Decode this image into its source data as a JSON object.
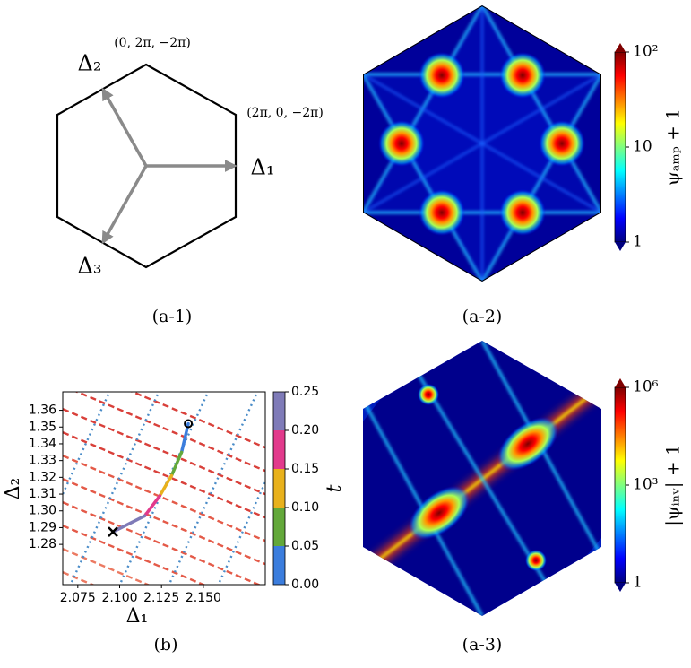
{
  "diagram": {
    "caption": "(a-1)",
    "vector_labels": [
      "Δ₁",
      "Δ₂",
      "Δ₃"
    ],
    "vertex_labels": [
      "(0, 2π, −2π)",
      "(2π, 0, −2π)"
    ]
  },
  "chart_data": [
    {
      "type": "heatmap",
      "caption": "(a-2)",
      "colorbar_label": "ψₐₘₚ + 1",
      "log_scale": true,
      "clim": [
        1,
        100
      ],
      "cticks": [
        1,
        10,
        {
          "value": 100,
          "label": "10²"
        }
      ],
      "colormap": [
        "#00007f",
        "#0000ff",
        "#007fff",
        "#00ffff",
        "#7fff7f",
        "#ffff00",
        "#ff7f00",
        "#ff0000",
        "#7f0000"
      ]
    },
    {
      "type": "heatmap",
      "caption": "(a-3)",
      "colorbar_label": "|ψᵢₙᵥ| + 1",
      "log_scale": true,
      "clim": [
        1,
        1000000
      ],
      "cticks": [
        1,
        {
          "value": 1000,
          "label": "10³"
        },
        {
          "value": 1000000,
          "label": "10⁶"
        }
      ],
      "colormap": [
        "#00007f",
        "#0000ff",
        "#007fff",
        "#00ffff",
        "#7fff7f",
        "#ffff00",
        "#ff7f00",
        "#ff0000",
        "#7f0000"
      ]
    },
    {
      "type": "line",
      "caption": "(b)",
      "x_label": "Δ₁",
      "y_label": "Δ₂",
      "xlim": [
        2.066,
        2.187
      ],
      "xticks": [
        2.075,
        {
          "value": 2.1,
          "label": "2.100"
        },
        2.125,
        {
          "value": 2.15,
          "label": "2.150"
        }
      ],
      "ylim": [
        1.256,
        1.371
      ],
      "yticks": [
        1.28,
        1.29,
        {
          "value": 1.3,
          "label": "1.30"
        },
        1.31,
        1.32,
        1.33,
        1.34,
        1.35,
        1.36
      ],
      "x": [
        2.141,
        2.137,
        2.131,
        2.124,
        2.115,
        2.096
      ],
      "series": [
        {
          "values": [
            1.352,
            1.335,
            1.321,
            1.309,
            1.297,
            1.2875
          ]
        }
      ],
      "colorbar": {
        "label": "t",
        "lim": [
          0,
          0.25
        ],
        "ticks": [
          {
            "value": 0,
            "label": "0.00"
          },
          0.05,
          {
            "value": 0.1,
            "label": "0.10"
          },
          0.15,
          {
            "value": 0.2,
            "label": "0.20"
          },
          {
            "value": 0.25,
            "label": "0.25"
          }
        ],
        "colors": [
          "#3b7ddd",
          "#63a83a",
          "#e8b11c",
          "#e23a8c",
          "#7f7bb8"
        ]
      }
    }
  ]
}
